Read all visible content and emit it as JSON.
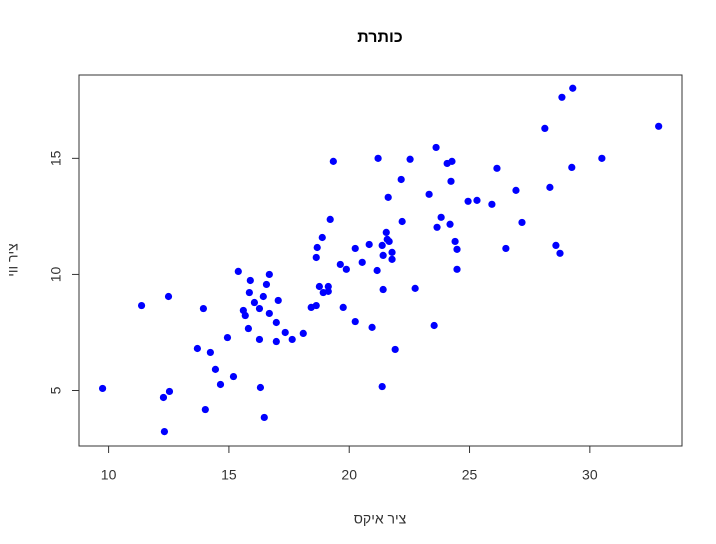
{
  "chart_data": {
    "type": "scatter",
    "title": "כותרת",
    "x_label": "ציר איקס",
    "y_label": "ציר ווי",
    "color": "#0000ff",
    "xlim": [
      8.77,
      33.83
    ],
    "ylim": [
      2.61,
      18.59
    ],
    "xticks": [
      10,
      15,
      20,
      25,
      30
    ],
    "yticks": [
      5,
      10,
      15
    ],
    "x": [
      9.75,
      11.37,
      12.49,
      12.28,
      12.53,
      12.32,
      13.94,
      14.02,
      13.69,
      14.23,
      14.44,
      14.65,
      14.94,
      15.19,
      15.39,
      15.6,
      15.68,
      15.89,
      15.85,
      15.81,
      16.06,
      16.27,
      16.31,
      16.47,
      16.43,
      16.27,
      16.56,
      16.68,
      16.68,
      16.97,
      17.05,
      16.97,
      17.34,
      17.63,
      18.09,
      18.42,
      18.63,
      18.76,
      18.63,
      18.67,
      18.88,
      18.92,
      19.13,
      19.13,
      19.21,
      19.34,
      19.63,
      19.75,
      19.88,
      20.25,
      20.25,
      20.54,
      20.83,
      20.95,
      21.16,
      21.2,
      21.37,
      21.41,
      21.41,
      21.37,
      21.54,
      21.58,
      21.62,
      21.66,
      21.78,
      21.78,
      21.91,
      22.16,
      22.2,
      22.53,
      22.74,
      23.32,
      23.53,
      23.61,
      23.65,
      23.82,
      24.07,
      24.27,
      24.19,
      24.23,
      24.4,
      24.48,
      24.48,
      24.94,
      25.31,
      25.93,
      26.14,
      26.51,
      26.93,
      27.18,
      28.13,
      28.34,
      28.59,
      28.76,
      28.84,
      29.29,
      29.25,
      30.5,
      32.86
    ],
    "values": [
      5.09,
      8.66,
      9.05,
      4.7,
      4.96,
      3.23,
      8.53,
      4.18,
      6.81,
      6.64,
      5.91,
      5.26,
      7.28,
      5.6,
      10.13,
      8.45,
      8.23,
      9.74,
      9.22,
      7.67,
      8.79,
      7.2,
      5.13,
      3.84,
      9.05,
      8.53,
      9.57,
      10.0,
      8.32,
      7.11,
      8.88,
      7.93,
      7.5,
      7.2,
      7.46,
      8.58,
      8.66,
      9.48,
      10.73,
      11.16,
      11.59,
      9.22,
      9.27,
      9.48,
      12.37,
      14.87,
      10.43,
      8.58,
      10.22,
      11.12,
      7.97,
      10.52,
      11.29,
      7.72,
      10.17,
      15.0,
      5.17,
      9.35,
      10.82,
      11.25,
      11.81,
      11.51,
      13.32,
      11.42,
      10.95,
      10.65,
      6.77,
      14.09,
      12.28,
      14.96,
      9.4,
      13.45,
      7.8,
      15.47,
      12.03,
      12.46,
      14.78,
      14.87,
      12.16,
      14.01,
      11.42,
      11.08,
      10.22,
      13.15,
      13.19,
      13.02,
      14.57,
      11.12,
      13.62,
      12.24,
      16.29,
      13.75,
      11.25,
      10.91,
      17.63,
      18.02,
      14.61,
      15.0,
      16.38
    ]
  }
}
